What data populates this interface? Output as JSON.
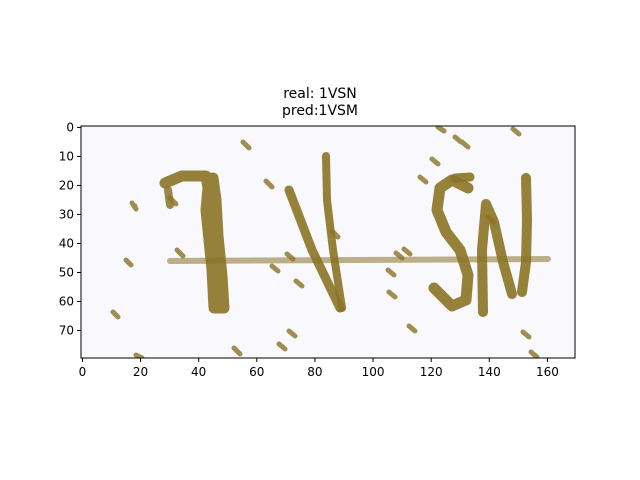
{
  "title_lines": {
    "real": "real: 1VSN",
    "pred": "pred:1VSM"
  },
  "image": {
    "width_units": 170,
    "height_units": 80,
    "background": "#f8f8fd",
    "ink": "#8b7326",
    "x_ticks": [
      0,
      20,
      40,
      60,
      80,
      100,
      120,
      140,
      160
    ],
    "y_ticks": [
      0,
      10,
      20,
      30,
      40,
      50,
      60,
      70
    ],
    "x_tick_labels": [
      "0",
      "20",
      "40",
      "60",
      "80",
      "100",
      "120",
      "140",
      "160"
    ],
    "y_tick_labels": [
      "0",
      "10",
      "20",
      "30",
      "40",
      "50",
      "60",
      "70"
    ]
  }
}
